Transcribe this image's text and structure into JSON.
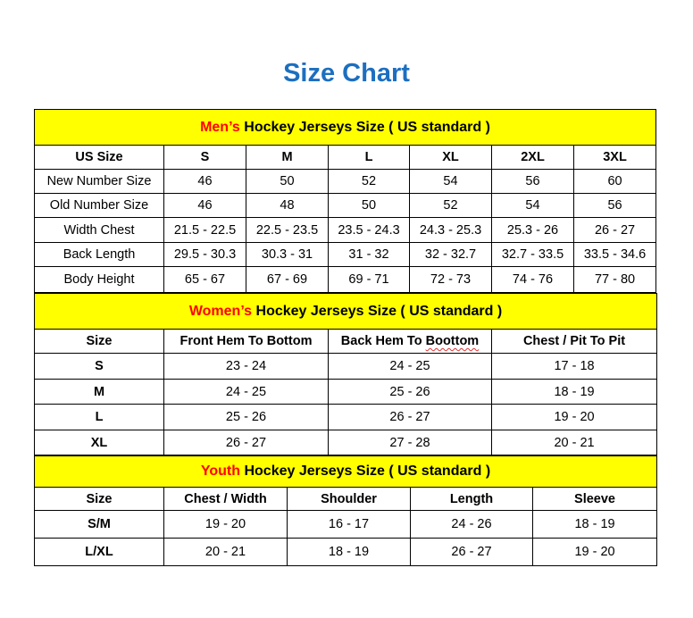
{
  "title": "Size Chart",
  "colors": {
    "title": "#1c6fc0",
    "header_bg": "#ffff00",
    "accent": "#ff0000"
  },
  "sections": [
    {
      "id": "men",
      "header_accent": "Men’s",
      "header_rest": " Hockey Jerseys Size ( US standard )",
      "header_height": 40,
      "col_widths": [
        145,
        92,
        92,
        91,
        92,
        92,
        92
      ],
      "row_heights": [
        27,
        27,
        27,
        28,
        27,
        29
      ],
      "columns": [
        "US Size",
        "S",
        "M",
        "L",
        "XL",
        "2XL",
        "3XL"
      ],
      "row_labels_bold": false,
      "rows": [
        [
          "New Number Size",
          "46",
          "50",
          "52",
          "54",
          "56",
          "60"
        ],
        [
          "Old Number Size",
          "46",
          "48",
          "50",
          "52",
          "54",
          "56"
        ],
        [
          "Width Chest",
          "21.5 - 22.5",
          "22.5 - 23.5",
          "23.5 - 24.3",
          "24.3 - 25.3",
          "25.3 - 26",
          "26 - 27"
        ],
        [
          "Back Length",
          "29.5 - 30.3",
          "30.3 - 31",
          "31 - 32",
          "32 - 32.7",
          "32.7 - 33.5",
          "33.5 - 34.6"
        ],
        [
          "Body Height",
          "65 - 67",
          "67 - 69",
          "69 - 71",
          "72 - 73",
          "74 - 76",
          "77 - 80"
        ]
      ]
    },
    {
      "id": "women",
      "header_accent": "Women’s",
      "header_rest": " Hockey Jerseys Size ( US standard )",
      "header_height": 40,
      "col_widths": [
        145,
        184,
        183,
        185
      ],
      "row_heights": [
        27,
        29,
        28,
        29,
        28
      ],
      "columns": [
        "Size",
        "Front Hem To Bottom",
        "Back Hem To Boottom",
        "Chest / Pit To Pit"
      ],
      "row_labels_bold": true,
      "rows": [
        [
          "S",
          "23 - 24",
          "24 - 25",
          "17 - 18"
        ],
        [
          "M",
          "24 - 25",
          "25 - 26",
          "18 - 19"
        ],
        [
          "L",
          "25 - 26",
          "26 - 27",
          "19 - 20"
        ],
        [
          "XL",
          "26 - 27",
          "27 - 28",
          "20 - 21"
        ]
      ]
    },
    {
      "id": "youth",
      "header_accent": "Youth",
      "header_rest": " Hockey Jerseys Size ( US standard )",
      "header_height": 35,
      "col_widths": [
        145,
        138,
        138,
        137,
        139
      ],
      "row_heights": [
        26,
        31,
        31
      ],
      "columns": [
        "Size",
        "Chest / Width",
        "Shoulder",
        "Length",
        "Sleeve"
      ],
      "row_labels_bold": true,
      "rows": [
        [
          "S/M",
          "19 - 20",
          "16 - 17",
          "24 - 26",
          "18 - 19"
        ],
        [
          "L/XL",
          "20 - 21",
          "18 - 19",
          "26 - 27",
          "19 - 20"
        ]
      ]
    }
  ]
}
